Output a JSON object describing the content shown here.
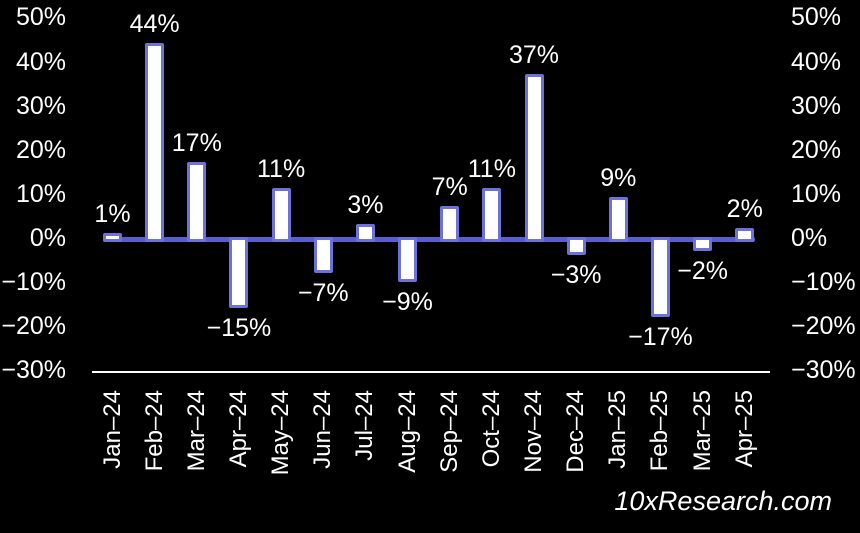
{
  "chart_data": {
    "type": "bar",
    "title": "",
    "categories": [
      "Jan–24",
      "Feb–24",
      "Mar–24",
      "Apr–24",
      "May–24",
      "Jun–24",
      "Jul–24",
      "Aug–24",
      "Sep–24",
      "Oct–24",
      "Nov–24",
      "Dec–24",
      "Jan–25",
      "Feb–25",
      "Mar–25",
      "Apr–25"
    ],
    "values": [
      1,
      44,
      17,
      -15,
      11,
      -7,
      3,
      -9,
      7,
      11,
      37,
      -3,
      9,
      -17,
      -2,
      2
    ],
    "bar_labels": [
      "1%",
      "44%",
      "17%",
      "−15%",
      "11%",
      "−7%",
      "3%",
      "−9%",
      "7%",
      "11%",
      "37%",
      "−3%",
      "9%",
      "−17%",
      "−2%",
      "2%"
    ],
    "y_axis": {
      "tick_values": [
        50,
        40,
        30,
        20,
        10,
        0,
        -10,
        -20,
        -30
      ],
      "tick_labels": [
        "50%",
        "40%",
        "30%",
        "20%",
        "10%",
        "0%",
        "−10%",
        "−20%",
        "−30%"
      ],
      "ylim": [
        -30,
        50
      ],
      "sides": [
        "left",
        "right"
      ]
    },
    "grid": false,
    "legend_position": "none"
  },
  "watermark": {
    "text": "10xResearch.com"
  },
  "colors": {
    "background": "#000000",
    "bar_fill": "#ffffff",
    "bar_border": "#6e72d8",
    "zero_line": "#585dd0",
    "axis_line": "#ffffff",
    "text": "#ffffff"
  }
}
